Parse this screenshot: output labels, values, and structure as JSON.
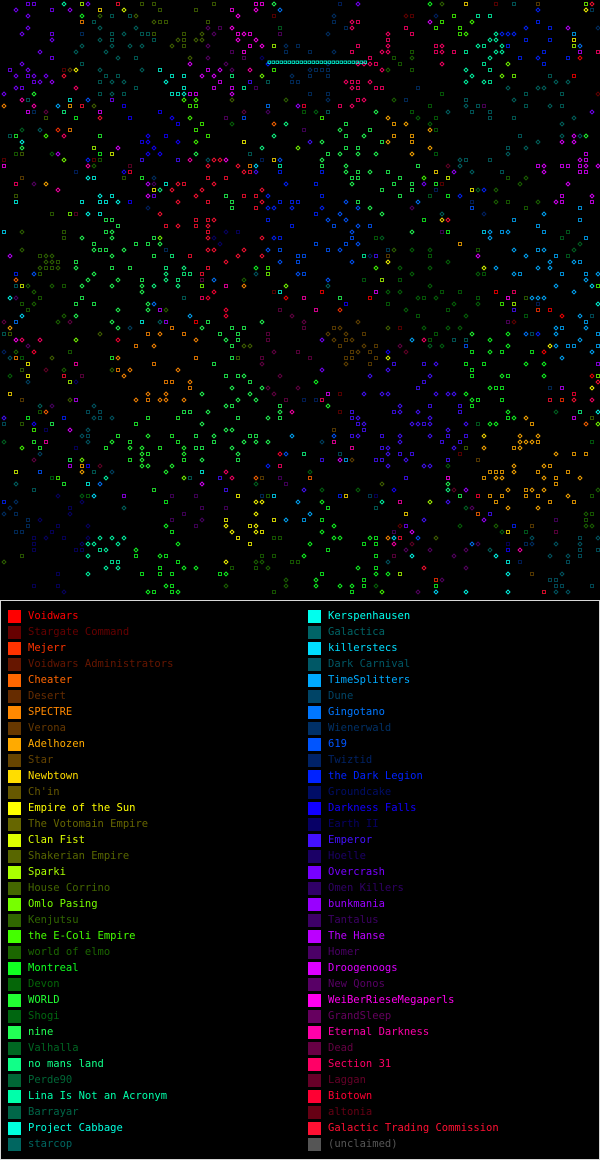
{
  "legend": {
    "left": [
      {
        "name": "Voidwars",
        "color": "#ff0000"
      },
      {
        "name": "Stargate Command",
        "color": "#660000"
      },
      {
        "name": "Mejerr",
        "color": "#ff3300"
      },
      {
        "name": "Voidwars Administrators",
        "color": "#661600"
      },
      {
        "name": "Cheater",
        "color": "#ff6600"
      },
      {
        "name": "Desert",
        "color": "#662c00"
      },
      {
        "name": "SPECTRE",
        "color": "#ff8800"
      },
      {
        "name": "Verona",
        "color": "#663800"
      },
      {
        "name": "Adelhozen",
        "color": "#ffaa00"
      },
      {
        "name": "Star",
        "color": "#664400"
      },
      {
        "name": "Newbtown",
        "color": "#ffdd00"
      },
      {
        "name": "Ch'in",
        "color": "#665800"
      },
      {
        "name": "Empire of the Sun",
        "color": "#ffff00"
      },
      {
        "name": "The Votomain Empire",
        "color": "#666600"
      },
      {
        "name": "Clan Fist",
        "color": "#ddff00"
      },
      {
        "name": "Shakerian Empire",
        "color": "#586600"
      },
      {
        "name": "Sparki",
        "color": "#aaff00"
      },
      {
        "name": "House Corrino",
        "color": "#446600"
      },
      {
        "name": "Omlo Pasing",
        "color": "#77ff00"
      },
      {
        "name": "Kenjutsu",
        "color": "#306600"
      },
      {
        "name": "the E-Coli Empire",
        "color": "#44ff00"
      },
      {
        "name": "world of elmo",
        "color": "#1b6600"
      },
      {
        "name": "Montreal",
        "color": "#11ff22"
      },
      {
        "name": "Devon",
        "color": "#056608"
      },
      {
        "name": "WORLD",
        "color": "#22ff33"
      },
      {
        "name": "Shogi",
        "color": "#006610"
      },
      {
        "name": "nine",
        "color": "#22ff55"
      },
      {
        "name": "Valhalla",
        "color": "#006622"
      },
      {
        "name": "no mans land",
        "color": "#11ff88"
      },
      {
        "name": "Perde90",
        "color": "#006636"
      },
      {
        "name": "Lina Is Not an Acronym",
        "color": "#00ffaa"
      },
      {
        "name": "Barrayar",
        "color": "#006648"
      },
      {
        "name": "Project Cabbage",
        "color": "#00ffdd"
      },
      {
        "name": "starcop",
        "color": "#006660"
      }
    ],
    "right": [
      {
        "name": "Kerspenhausen",
        "color": "#00ffee"
      },
      {
        "name": "Galactica",
        "color": "#006466"
      },
      {
        "name": "killerstecs",
        "color": "#00ddff"
      },
      {
        "name": "Dark Carnival",
        "color": "#005866"
      },
      {
        "name": "TimeSplitters",
        "color": "#00aaff"
      },
      {
        "name": "Dune",
        "color": "#004466"
      },
      {
        "name": "Gingotano",
        "color": "#0077ff"
      },
      {
        "name": "Wienerwald",
        "color": "#003066"
      },
      {
        "name": "619",
        "color": "#0055ff"
      },
      {
        "name": "Twiztid",
        "color": "#002266"
      },
      {
        "name": "the Dark Legion",
        "color": "#0022ff"
      },
      {
        "name": "Groundcake",
        "color": "#000d66"
      },
      {
        "name": "Darkness Falls",
        "color": "#1100ff"
      },
      {
        "name": "Earth II",
        "color": "#070066"
      },
      {
        "name": "Emperor",
        "color": "#4411ff"
      },
      {
        "name": "Hoelle",
        "color": "#1b0066"
      },
      {
        "name": "Overcrash",
        "color": "#7700ff"
      },
      {
        "name": "Omen Killers",
        "color": "#300066"
      },
      {
        "name": "bunkmania",
        "color": "#9900ff"
      },
      {
        "name": "Tantalus",
        "color": "#3d0066"
      },
      {
        "name": "The Hanse",
        "color": "#bb00ff"
      },
      {
        "name": "Homer",
        "color": "#4b0066"
      },
      {
        "name": "Droogenoogs",
        "color": "#dd00ff"
      },
      {
        "name": "New Qonos",
        "color": "#580066"
      },
      {
        "name": "WeiBerRieseMegaperls",
        "color": "#ff00ee"
      },
      {
        "name": "GrandSleep",
        "color": "#66005f"
      },
      {
        "name": "Eternal Darkness",
        "color": "#ff00aa"
      },
      {
        "name": "Dead",
        "color": "#660044"
      },
      {
        "name": "Section 31",
        "color": "#ff0066"
      },
      {
        "name": "Laggan",
        "color": "#660028"
      },
      {
        "name": "Biotown",
        "color": "#ff0033"
      },
      {
        "name": "altonia",
        "color": "#660014"
      },
      {
        "name": "Galactic Trading Commission",
        "color": "#ff1133"
      },
      {
        "name": "(unclaimed)",
        "color": "#555555"
      }
    ]
  }
}
